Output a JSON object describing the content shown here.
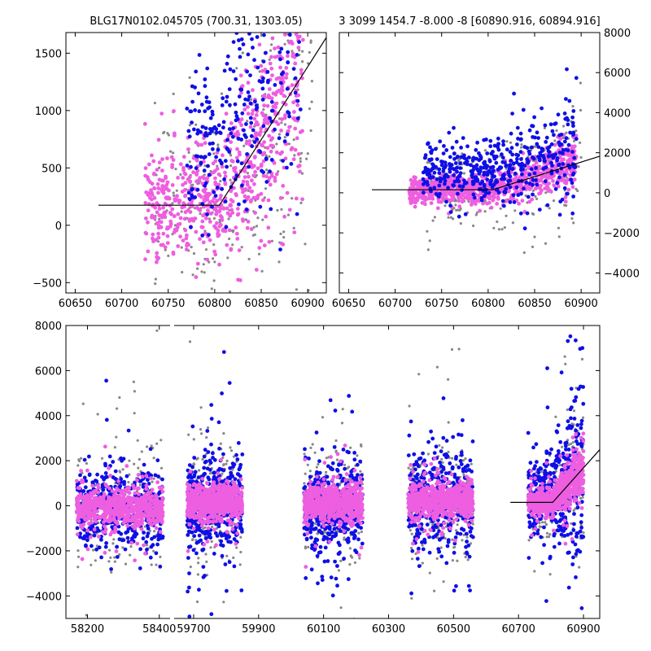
{
  "colors": {
    "blue": "#0f0fe6",
    "pink": "#ee5ee0",
    "gray": "#888888",
    "model": "#000000"
  },
  "chart_data": [
    {
      "type": "scatter",
      "panel": "top-left",
      "title": "BLG17N0102.045705 (700.31, 1303.05)",
      "xlabel": "",
      "ylabel": "",
      "xlim": [
        60640,
        60920
      ],
      "ylim": [
        -590,
        1680
      ],
      "xticks": [
        60650,
        60700,
        60750,
        60800,
        60850,
        60900
      ],
      "yticks": [
        -500,
        0,
        500,
        1000,
        1500
      ],
      "y_axis_side": "left",
      "series": [
        {
          "name": "gray",
          "color_key": "gray",
          "x_range": [
            60735,
            60905
          ],
          "center": "model",
          "spread": 420,
          "count": 260
        },
        {
          "name": "pink",
          "color_key": "pink",
          "x_range": [
            60725,
            60895
          ],
          "center": "model",
          "spread": 260,
          "count": 700
        },
        {
          "name": "blue",
          "color_key": "blue",
          "x_range": [
            60770,
            60895
          ],
          "center": "offset",
          "offset": 500,
          "spread": 380,
          "count": 300
        }
      ],
      "model_line": {
        "x": [
          60675,
          60805,
          60925
        ],
        "y": [
          175,
          175,
          1700
        ]
      }
    },
    {
      "type": "scatter",
      "panel": "top-right",
      "title": "3 3099 1454.7 -8.000 -8 [60890.916, 60894.916]",
      "xlabel": "",
      "ylabel": "",
      "xlim": [
        60640,
        60920
      ],
      "ylim": [
        -5000,
        8000
      ],
      "xticks": [
        60650,
        60700,
        60750,
        60800,
        60850,
        60900
      ],
      "yticks": [
        -4000,
        -2000,
        0,
        2000,
        4000,
        6000,
        8000
      ],
      "y_axis_side": "right",
      "series": [
        {
          "name": "gray",
          "color_key": "gray",
          "x_range": [
            60730,
            60900
          ],
          "center": "model",
          "spread": 900,
          "count": 260
        },
        {
          "name": "pink",
          "color_key": "pink",
          "x_range": [
            60715,
            60895
          ],
          "center": "model",
          "spread": 350,
          "count": 900
        },
        {
          "name": "blue",
          "color_key": "blue",
          "x_range": [
            60730,
            60895
          ],
          "center": "offset",
          "offset": 900,
          "spread": 800,
          "count": 450
        }
      ],
      "model_line": {
        "x": [
          60675,
          60805,
          60925
        ],
        "y": [
          150,
          150,
          1900
        ]
      }
    },
    {
      "type": "scatter",
      "panel": "bottom",
      "title": "",
      "xlabel": "",
      "ylabel": "",
      "ylim": [
        -5000,
        8000
      ],
      "yticks": [
        -4000,
        -2000,
        0,
        2000,
        4000,
        6000,
        8000
      ],
      "y_axis_side": "left",
      "segments": [
        {
          "xlim": [
            58140,
            58430
          ],
          "xticks": [
            58200,
            58400
          ]
        },
        {
          "xlim": [
            59640,
            60950
          ],
          "xticks": [
            59700,
            59900,
            60100,
            60300,
            60500,
            60700,
            60900
          ]
        }
      ],
      "seasons": [
        {
          "segment": 0,
          "x_range": [
            58170,
            58410
          ],
          "center": -100,
          "spread": 700,
          "blue_offset": -100,
          "blue_spread": 900
        },
        {
          "segment": 1,
          "x_range": [
            59680,
            59850
          ],
          "center": 150,
          "spread": 700,
          "blue_offset": -300,
          "blue_spread": 1100
        },
        {
          "segment": 1,
          "x_range": [
            60040,
            60220
          ],
          "center": 100,
          "spread": 650,
          "blue_offset": -700,
          "blue_spread": 1000
        },
        {
          "segment": 1,
          "x_range": [
            60360,
            60560
          ],
          "center": 200,
          "spread": 650,
          "blue_offset": 200,
          "blue_spread": 1000
        },
        {
          "segment": 1,
          "x_range": [
            60730,
            60900
          ],
          "center": "model",
          "spread": 450,
          "blue_offset": 900,
          "blue_spread": 900
        }
      ],
      "model_line": {
        "x": [
          60675,
          60805,
          61000
        ],
        "y": [
          150,
          150,
          3300
        ]
      }
    }
  ]
}
